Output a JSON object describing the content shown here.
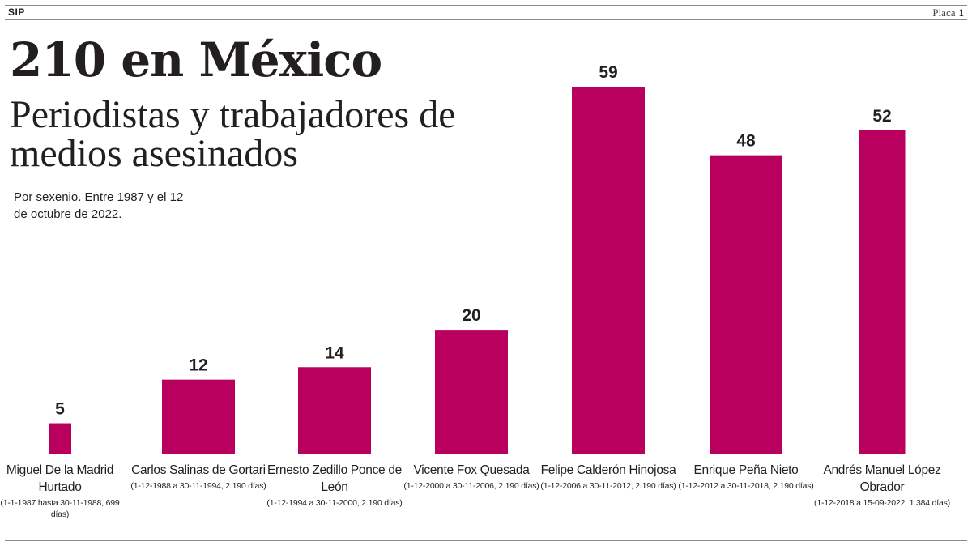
{
  "header": {
    "source": "SIP",
    "page_label": "Placa",
    "page_number": "1"
  },
  "title": "210 en México",
  "subtitle": "Periodistas y trabajadores de medios asesinados",
  "note": "Por sexenio. Entre 1987 y el 12 de octubre de 2022.",
  "colors": {
    "bar": "#b9005f",
    "text": "#231f20"
  },
  "chart_data": {
    "type": "bar",
    "title": "210 en México",
    "subtitle": "Periodistas y trabajadores de medios asesinados",
    "categories": [
      "Miguel De la Madrid Hurtado",
      "Carlos Salinas de Gortari",
      "Ernesto Zedillo Ponce de León",
      "Vicente Fox Quesada",
      "Felipe Calderón Hinojosa",
      "Enrique Peña Nieto",
      "Andrés Manuel López Obrador"
    ],
    "periods": [
      "(1-1-1987 hasta 30-11-1988, 699 días)",
      "(1-12-1988 a 30-11-1994, 2.190 días)",
      "(1-12-1994 a 30-11-2000, 2.190 días)",
      "(1-12-2000 a 30-11-2006, 2.190 días)",
      "(1-12-2006 a 30-11-2012, 2.190 días)",
      "(1-12-2012 a 30-11-2018, 2.190 días)",
      "(1-12-2018 a 15-09-2022, 1.384 días)"
    ],
    "values": [
      5,
      12,
      14,
      20,
      59,
      48,
      52
    ],
    "data_labels": [
      "5",
      "12",
      "14",
      "20",
      "59",
      "48",
      "52"
    ],
    "bar_width_days": [
      699,
      2190,
      2190,
      2190,
      2190,
      2190,
      1384
    ],
    "xlabel": "",
    "ylabel": "",
    "ylim": [
      0,
      59
    ],
    "grid": false,
    "legend": "none"
  }
}
